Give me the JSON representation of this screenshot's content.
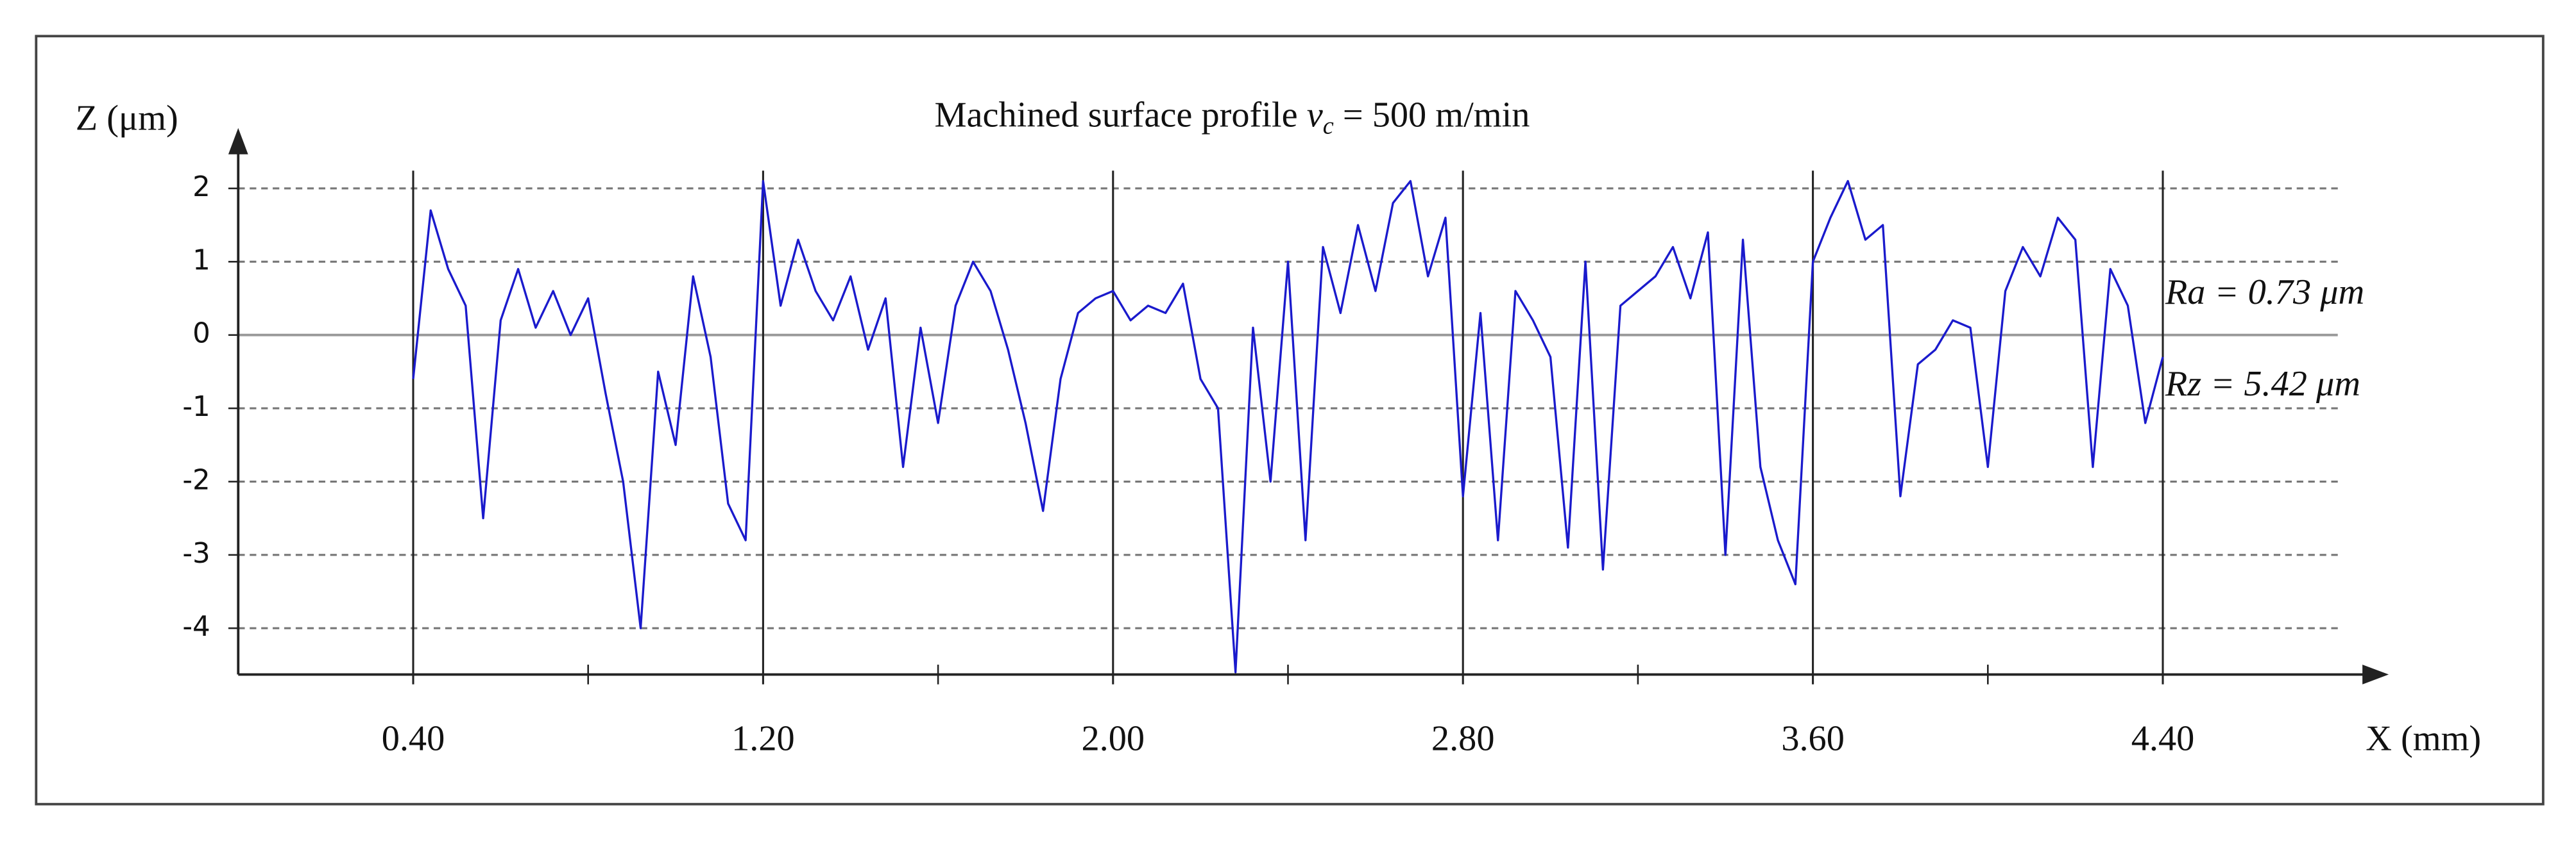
{
  "chart_data": {
    "type": "line",
    "title": "Machined surface profile",
    "title_variable": "v",
    "title_subscript": "c",
    "title_suffix": "= 500 m/min",
    "y_label": "Z (μm)",
    "x_label": "X (mm)",
    "annotations": [
      "Ra = 0.73 μm",
      "Rz = 5.42 μm"
    ],
    "color": "#1a1acc",
    "xlim": [
      0,
      4.8
    ],
    "ylim": [
      -4.6,
      2.6
    ],
    "xticks": [
      {
        "value": 0.4,
        "label": "0.40"
      },
      {
        "value": 1.2,
        "label": "1.20"
      },
      {
        "value": 2.0,
        "label": "2.00"
      },
      {
        "value": 2.8,
        "label": "2.80"
      },
      {
        "value": 3.6,
        "label": "3.60"
      },
      {
        "value": 4.4,
        "label": "4.40"
      }
    ],
    "xminorticks": [
      0.8,
      1.6,
      2.4,
      3.2,
      4.0
    ],
    "yticks": [
      2,
      1,
      0,
      -1,
      -2,
      -3,
      -4
    ],
    "grid": true,
    "x": [
      0.4,
      0.44,
      0.48,
      0.52,
      0.56,
      0.6,
      0.64,
      0.68,
      0.72,
      0.76,
      0.8,
      0.84,
      0.88,
      0.92,
      0.96,
      1.0,
      1.04,
      1.08,
      1.12,
      1.16,
      1.2,
      1.24,
      1.28,
      1.32,
      1.36,
      1.4,
      1.44,
      1.48,
      1.52,
      1.56,
      1.6,
      1.64,
      1.68,
      1.72,
      1.76,
      1.8,
      1.84,
      1.88,
      1.92,
      1.96,
      2.0,
      2.04,
      2.08,
      2.12,
      2.16,
      2.2,
      2.24,
      2.28,
      2.32,
      2.36,
      2.4,
      2.44,
      2.48,
      2.52,
      2.56,
      2.6,
      2.64,
      2.68,
      2.72,
      2.76,
      2.8,
      2.84,
      2.88,
      2.92,
      2.96,
      3.0,
      3.04,
      3.08,
      3.12,
      3.16,
      3.2,
      3.24,
      3.28,
      3.32,
      3.36,
      3.4,
      3.44,
      3.48,
      3.52,
      3.56,
      3.6,
      3.64,
      3.68,
      3.72,
      3.76,
      3.8,
      3.84,
      3.88,
      3.92,
      3.96,
      4.0,
      4.04,
      4.08,
      4.12,
      4.16,
      4.2,
      4.24,
      4.28,
      4.32,
      4.36,
      4.4
    ],
    "values": [
      -0.6,
      1.7,
      0.9,
      0.4,
      -2.5,
      0.2,
      0.9,
      0.1,
      0.6,
      0.0,
      0.5,
      -0.8,
      -2.0,
      -4.0,
      -0.5,
      -1.5,
      0.8,
      -0.3,
      -2.3,
      -2.8,
      2.1,
      0.4,
      1.3,
      0.6,
      0.2,
      0.8,
      -0.2,
      0.5,
      -1.8,
      0.1,
      -1.2,
      0.4,
      1.0,
      0.6,
      -0.2,
      -1.2,
      -2.4,
      -0.6,
      0.3,
      0.5,
      0.6,
      0.2,
      0.4,
      0.3,
      0.7,
      -0.6,
      -1.0,
      -4.6,
      0.1,
      -2.0,
      1.0,
      -2.8,
      1.2,
      0.3,
      1.5,
      0.6,
      1.8,
      2.1,
      0.8,
      1.6,
      -2.2,
      0.3,
      -2.8,
      0.6,
      0.2,
      -0.3,
      -2.9,
      1.0,
      -3.2,
      0.4,
      0.6,
      0.8,
      1.2,
      0.5,
      1.4,
      -3.0,
      1.3,
      -1.8,
      -2.8,
      -3.4,
      1.0,
      1.6,
      2.1,
      1.3,
      1.5,
      -2.2,
      -0.4,
      -0.2,
      0.2,
      0.1,
      -1.8,
      0.6,
      1.2,
      0.8,
      1.6,
      1.3,
      -1.8,
      0.9,
      0.4,
      -1.2,
      -0.3
    ]
  }
}
